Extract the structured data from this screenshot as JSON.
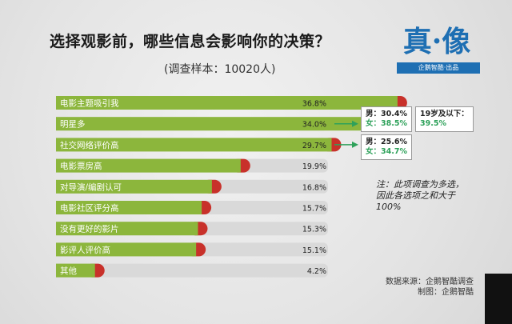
{
  "title": "选择观影前，哪些信息会影响你的决策？",
  "subtitle": "(调查样本：10020人)",
  "logo": {
    "text": "真·像",
    "sub": "企鹅智酷·出品",
    "color": "#1e6fb3"
  },
  "colors": {
    "bar_green": "#8cb63c",
    "bar_red": "#c8312a",
    "track": "#d9d9d9"
  },
  "chart_data": {
    "type": "bar",
    "orientation": "horizontal",
    "categories": [
      "电影主题吸引我",
      "明星多",
      "社交网络评价高",
      "电影票房高",
      "对导演/编剧认可",
      "电影社区评分高",
      "没有更好的影片",
      "影评人评价高",
      "其他"
    ],
    "values": [
      36.8,
      34.0,
      29.7,
      19.9,
      16.8,
      15.7,
      15.3,
      15.1,
      4.2
    ],
    "value_labels": [
      "36.8%",
      "34.0%",
      "29.7%",
      "19.9%",
      "16.8%",
      "15.7%",
      "15.3%",
      "15.1%",
      "4.2%"
    ],
    "xlim": [
      0,
      50
    ],
    "grid": false
  },
  "annotations": {
    "star": {
      "male": "男：30.4%",
      "female": "女：38.5%",
      "age_label": "19岁及以下：",
      "age_value": "39.5%"
    },
    "social": {
      "male": "男：25.6%",
      "female": "女：34.7%"
    }
  },
  "note": "注：此项调查为多选，因此各选项之和大于100%",
  "source": {
    "line1": "数据来源：企鹅智酷调查",
    "line2": "制图：企鹅智酷"
  }
}
